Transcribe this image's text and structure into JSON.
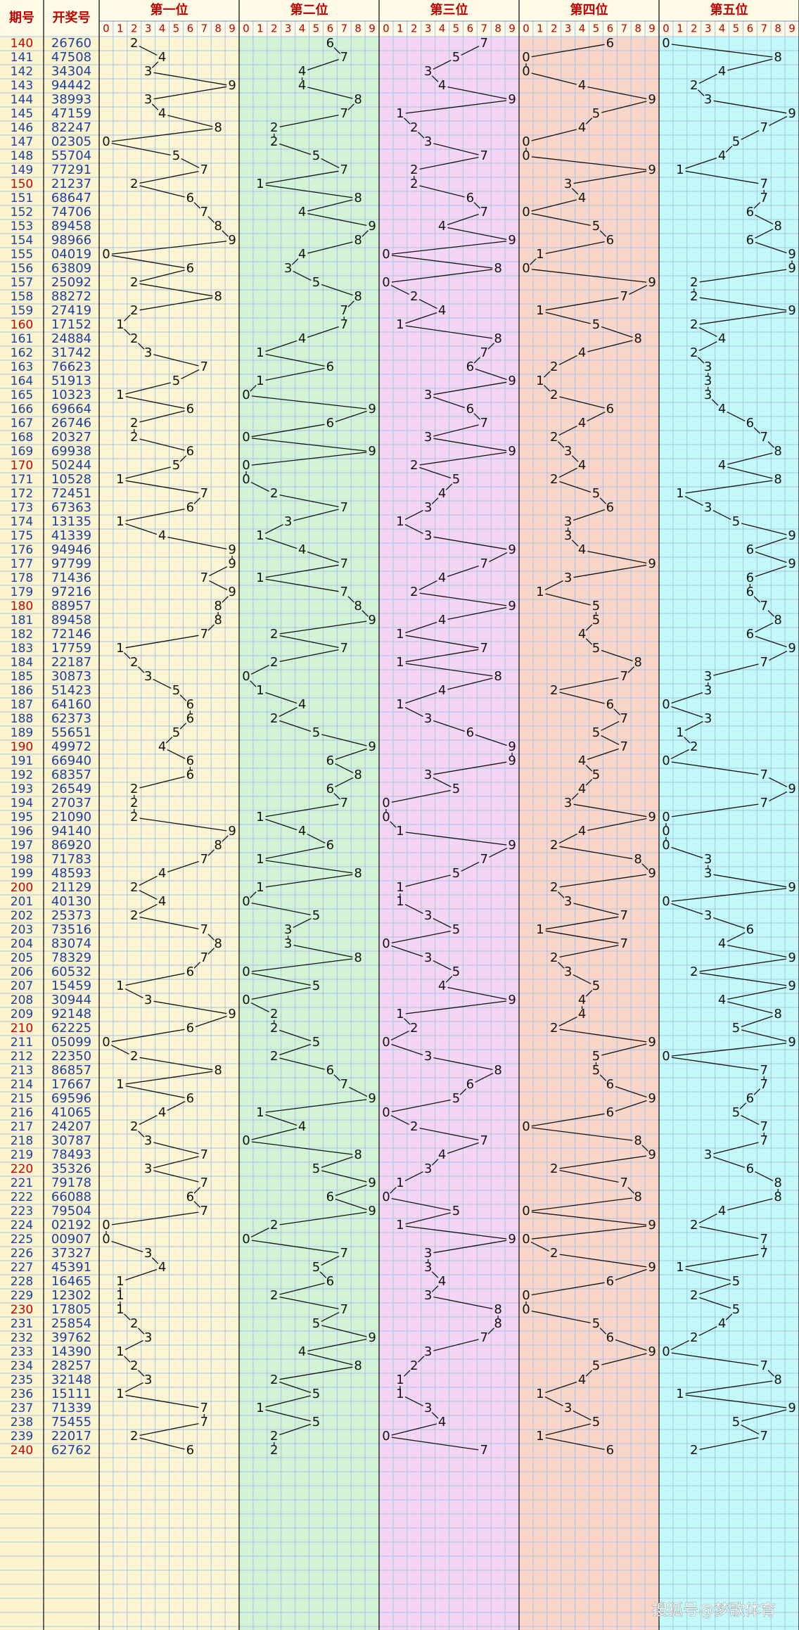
{
  "header": {
    "period": "期号",
    "number": "开奖号",
    "positions": [
      "第一位",
      "第二位",
      "第三位",
      "第四位",
      "第五位"
    ],
    "digits": [
      0,
      1,
      2,
      3,
      4,
      5,
      6,
      7,
      8,
      9
    ]
  },
  "rows": [
    [
      "140",
      "26760",
      [
        2,
        6,
        7,
        6,
        0
      ]
    ],
    [
      "141",
      "47508",
      [
        4,
        7,
        5,
        0,
        8
      ]
    ],
    [
      "142",
      "34304",
      [
        3,
        4,
        3,
        0,
        4
      ]
    ],
    [
      "143",
      "94442",
      [
        9,
        4,
        4,
        4,
        2
      ]
    ],
    [
      "144",
      "38993",
      [
        3,
        8,
        9,
        9,
        3
      ]
    ],
    [
      "145",
      "47159",
      [
        4,
        7,
        1,
        5,
        9
      ]
    ],
    [
      "146",
      "82247",
      [
        8,
        2,
        2,
        4,
        7
      ]
    ],
    [
      "147",
      "02305",
      [
        0,
        2,
        3,
        0,
        5
      ]
    ],
    [
      "148",
      "55704",
      [
        5,
        5,
        7,
        0,
        4
      ]
    ],
    [
      "149",
      "77291",
      [
        7,
        7,
        2,
        9,
        1
      ]
    ],
    [
      "150",
      "21237",
      [
        2,
        1,
        2,
        3,
        7
      ]
    ],
    [
      "151",
      "68647",
      [
        6,
        8,
        6,
        4,
        7
      ]
    ],
    [
      "152",
      "74706",
      [
        7,
        4,
        7,
        0,
        6
      ]
    ],
    [
      "153",
      "89458",
      [
        8,
        9,
        4,
        5,
        8
      ]
    ],
    [
      "154",
      "98966",
      [
        9,
        8,
        9,
        6,
        6
      ]
    ],
    [
      "155",
      "04019",
      [
        0,
        4,
        0,
        1,
        9
      ]
    ],
    [
      "156",
      "63809",
      [
        6,
        3,
        8,
        0,
        9
      ]
    ],
    [
      "157",
      "25092",
      [
        2,
        5,
        0,
        9,
        2
      ]
    ],
    [
      "158",
      "88272",
      [
        8,
        8,
        2,
        7,
        2
      ]
    ],
    [
      "159",
      "27419",
      [
        2,
        7,
        4,
        1,
        9
      ]
    ],
    [
      "160",
      "17152",
      [
        1,
        7,
        1,
        5,
        2
      ]
    ],
    [
      "161",
      "24884",
      [
        2,
        4,
        8,
        8,
        4
      ]
    ],
    [
      "162",
      "31742",
      [
        3,
        1,
        7,
        4,
        2
      ]
    ],
    [
      "163",
      "76623",
      [
        7,
        6,
        6,
        2,
        3
      ]
    ],
    [
      "164",
      "51913",
      [
        5,
        1,
        9,
        1,
        3
      ]
    ],
    [
      "165",
      "10323",
      [
        1,
        0,
        3,
        2,
        3
      ]
    ],
    [
      "166",
      "69664",
      [
        6,
        9,
        6,
        6,
        4
      ]
    ],
    [
      "167",
      "26746",
      [
        2,
        6,
        7,
        4,
        6
      ]
    ],
    [
      "168",
      "20327",
      [
        2,
        0,
        3,
        2,
        7
      ]
    ],
    [
      "169",
      "69938",
      [
        6,
        9,
        9,
        3,
        8
      ]
    ],
    [
      "170",
      "50244",
      [
        5,
        0,
        2,
        4,
        4
      ]
    ],
    [
      "171",
      "10528",
      [
        1,
        0,
        5,
        2,
        8
      ]
    ],
    [
      "172",
      "72451",
      [
        7,
        2,
        4,
        5,
        1
      ]
    ],
    [
      "173",
      "67363",
      [
        6,
        7,
        3,
        6,
        3
      ]
    ],
    [
      "174",
      "13135",
      [
        1,
        3,
        1,
        3,
        5
      ]
    ],
    [
      "175",
      "41339",
      [
        4,
        1,
        3,
        3,
        9
      ]
    ],
    [
      "176",
      "94946",
      [
        9,
        4,
        9,
        4,
        6
      ]
    ],
    [
      "177",
      "97799",
      [
        9,
        7,
        7,
        9,
        9
      ]
    ],
    [
      "178",
      "71436",
      [
        7,
        1,
        4,
        3,
        6
      ]
    ],
    [
      "179",
      "97216",
      [
        9,
        7,
        2,
        1,
        6
      ]
    ],
    [
      "180",
      "88957",
      [
        8,
        8,
        9,
        5,
        7
      ]
    ],
    [
      "181",
      "89458",
      [
        8,
        9,
        4,
        5,
        8
      ]
    ],
    [
      "182",
      "72146",
      [
        7,
        2,
        1,
        4,
        6
      ]
    ],
    [
      "183",
      "17759",
      [
        1,
        7,
        7,
        5,
        9
      ]
    ],
    [
      "184",
      "22187",
      [
        2,
        2,
        1,
        8,
        7
      ]
    ],
    [
      "185",
      "30873",
      [
        3,
        0,
        8,
        7,
        3
      ]
    ],
    [
      "186",
      "51423",
      [
        5,
        1,
        4,
        2,
        3
      ]
    ],
    [
      "187",
      "64160",
      [
        6,
        4,
        1,
        6,
        0
      ]
    ],
    [
      "188",
      "62373",
      [
        6,
        2,
        3,
        7,
        3
      ]
    ],
    [
      "189",
      "55651",
      [
        5,
        5,
        6,
        5,
        1
      ]
    ],
    [
      "190",
      "49972",
      [
        4,
        9,
        9,
        7,
        2
      ]
    ],
    [
      "191",
      "66940",
      [
        6,
        6,
        9,
        4,
        0
      ]
    ],
    [
      "192",
      "68357",
      [
        6,
        8,
        3,
        5,
        7
      ]
    ],
    [
      "193",
      "26549",
      [
        2,
        6,
        5,
        4,
        9
      ]
    ],
    [
      "194",
      "27037",
      [
        2,
        7,
        0,
        3,
        7
      ]
    ],
    [
      "195",
      "21090",
      [
        2,
        1,
        0,
        9,
        0
      ]
    ],
    [
      "196",
      "94140",
      [
        9,
        4,
        1,
        4,
        0
      ]
    ],
    [
      "197",
      "86920",
      [
        8,
        6,
        9,
        2,
        0
      ]
    ],
    [
      "198",
      "71783",
      [
        7,
        1,
        7,
        8,
        3
      ]
    ],
    [
      "199",
      "48593",
      [
        4,
        8,
        5,
        9,
        3
      ]
    ],
    [
      "200",
      "21129",
      [
        2,
        1,
        1,
        2,
        9
      ]
    ],
    [
      "201",
      "40130",
      [
        4,
        0,
        1,
        3,
        0
      ]
    ],
    [
      "202",
      "25373",
      [
        2,
        5,
        3,
        7,
        3
      ]
    ],
    [
      "203",
      "73516",
      [
        7,
        3,
        5,
        1,
        6
      ]
    ],
    [
      "204",
      "83074",
      [
        8,
        3,
        0,
        7,
        4
      ]
    ],
    [
      "205",
      "78329",
      [
        7,
        8,
        3,
        2,
        9
      ]
    ],
    [
      "206",
      "60532",
      [
        6,
        0,
        5,
        3,
        2
      ]
    ],
    [
      "207",
      "15459",
      [
        1,
        5,
        4,
        5,
        9
      ]
    ],
    [
      "208",
      "30944",
      [
        3,
        0,
        9,
        4,
        4
      ]
    ],
    [
      "209",
      "92148",
      [
        9,
        2,
        1,
        4,
        8
      ]
    ],
    [
      "210",
      "62225",
      [
        6,
        2,
        2,
        2,
        5
      ]
    ],
    [
      "211",
      "05099",
      [
        0,
        5,
        0,
        9,
        9
      ]
    ],
    [
      "212",
      "22350",
      [
        2,
        2,
        3,
        5,
        0
      ]
    ],
    [
      "213",
      "86857",
      [
        8,
        6,
        8,
        5,
        7
      ]
    ],
    [
      "214",
      "17667",
      [
        1,
        7,
        6,
        6,
        7
      ]
    ],
    [
      "215",
      "69596",
      [
        6,
        9,
        5,
        9,
        6
      ]
    ],
    [
      "216",
      "41065",
      [
        4,
        1,
        0,
        6,
        5
      ]
    ],
    [
      "217",
      "24207",
      [
        2,
        4,
        2,
        0,
        7
      ]
    ],
    [
      "218",
      "30787",
      [
        3,
        0,
        7,
        8,
        7
      ]
    ],
    [
      "219",
      "78493",
      [
        7,
        8,
        4,
        9,
        3
      ]
    ],
    [
      "220",
      "35326",
      [
        3,
        5,
        3,
        2,
        6
      ]
    ],
    [
      "221",
      "79178",
      [
        7,
        9,
        1,
        7,
        8
      ]
    ],
    [
      "222",
      "66088",
      [
        6,
        6,
        0,
        8,
        8
      ]
    ],
    [
      "223",
      "79504",
      [
        7,
        9,
        5,
        0,
        4
      ]
    ],
    [
      "224",
      "02192",
      [
        0,
        2,
        1,
        9,
        2
      ]
    ],
    [
      "225",
      "00907",
      [
        0,
        0,
        9,
        0,
        7
      ]
    ],
    [
      "226",
      "37327",
      [
        3,
        7,
        3,
        2,
        7
      ]
    ],
    [
      "227",
      "45391",
      [
        4,
        5,
        3,
        9,
        1
      ]
    ],
    [
      "228",
      "16465",
      [
        1,
        6,
        4,
        6,
        5
      ]
    ],
    [
      "229",
      "12302",
      [
        1,
        2,
        3,
        0,
        2
      ]
    ],
    [
      "230",
      "17805",
      [
        1,
        7,
        8,
        0,
        5
      ]
    ],
    [
      "231",
      "25854",
      [
        2,
        5,
        8,
        5,
        4
      ]
    ],
    [
      "232",
      "39762",
      [
        3,
        9,
        7,
        6,
        2
      ]
    ],
    [
      "233",
      "14390",
      [
        1,
        4,
        3,
        9,
        0
      ]
    ],
    [
      "234",
      "28257",
      [
        2,
        8,
        2,
        5,
        7
      ]
    ],
    [
      "235",
      "32148",
      [
        3,
        2,
        1,
        4,
        8
      ]
    ],
    [
      "236",
      "15111",
      [
        1,
        5,
        1,
        1,
        1
      ]
    ],
    [
      "237",
      "71339",
      [
        7,
        1,
        3,
        3,
        9
      ]
    ],
    [
      "238",
      "75455",
      [
        7,
        5,
        4,
        5,
        5
      ]
    ],
    [
      "239",
      "22017",
      [
        2,
        2,
        0,
        1,
        7
      ]
    ],
    [
      "240",
      "62762",
      [
        6,
        2,
        7,
        6,
        2
      ]
    ]
  ],
  "watermark": "搜狐号@梦歌体育"
}
